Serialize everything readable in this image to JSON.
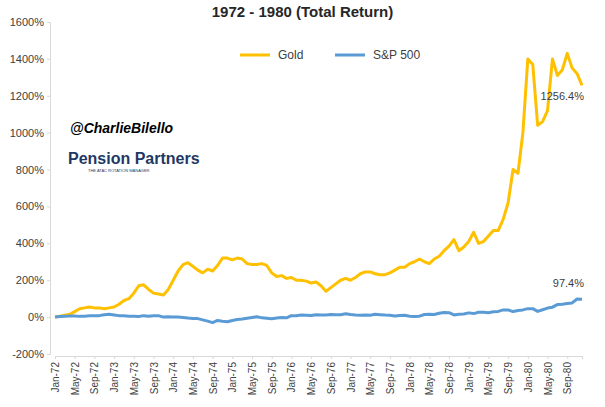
{
  "chart_data": {
    "type": "line",
    "title": "1972 - 1980 (Total Return)",
    "categories": [
      "Jan-72",
      null,
      null,
      null,
      "May-72",
      null,
      null,
      null,
      "Sep-72",
      null,
      null,
      null,
      "Jan-73",
      null,
      null,
      null,
      "May-73",
      null,
      null,
      null,
      "Sep-73",
      null,
      null,
      null,
      "Jan-74",
      null,
      null,
      null,
      "May-74",
      null,
      null,
      null,
      "Sep-74",
      null,
      null,
      null,
      "Jan-75",
      null,
      null,
      null,
      "May-75",
      null,
      null,
      null,
      "Sep-75",
      null,
      null,
      null,
      "Jan-76",
      null,
      null,
      null,
      "May-76",
      null,
      null,
      null,
      "Sep-76",
      null,
      null,
      null,
      "Jan-77",
      null,
      null,
      null,
      "May-77",
      null,
      null,
      null,
      "Sep-77",
      null,
      null,
      null,
      "Jan-78",
      null,
      null,
      null,
      "May-78",
      null,
      null,
      null,
      "Sep-78",
      null,
      null,
      null,
      "Jan-79",
      null,
      null,
      null,
      "May-79",
      null,
      null,
      null,
      "Sep-79",
      null,
      null,
      null,
      "Jan-80",
      null,
      null,
      null,
      "May-80",
      null,
      null,
      null,
      "Sep-80",
      null,
      null,
      null
    ],
    "series": [
      {
        "name": "Gold",
        "color": "#ffc000",
        "values": [
          0,
          5,
          10,
          15,
          30,
          45,
          50,
          55,
          50,
          50,
          45,
          50,
          55,
          70,
          90,
          100,
          130,
          170,
          175,
          150,
          130,
          125,
          120,
          150,
          200,
          250,
          285,
          295,
          275,
          255,
          240,
          260,
          250,
          280,
          320,
          320,
          310,
          320,
          315,
          290,
          285,
          285,
          290,
          280,
          240,
          220,
          225,
          210,
          215,
          200,
          200,
          195,
          185,
          190,
          170,
          140,
          160,
          180,
          200,
          210,
          200,
          215,
          235,
          245,
          245,
          235,
          230,
          230,
          240,
          255,
          270,
          270,
          290,
          300,
          315,
          300,
          290,
          315,
          330,
          360,
          385,
          420,
          360,
          380,
          410,
          460,
          400,
          410,
          440,
          470,
          470,
          530,
          620,
          800,
          780,
          1000,
          1400,
          1370,
          1040,
          1060,
          1120,
          1400,
          1310,
          1340,
          1430,
          1350,
          1320,
          1256.4
        ]
      },
      {
        "name": "S&P 500",
        "color": "#5b9bd5",
        "values": [
          0,
          3,
          5,
          6,
          6,
          4,
          5,
          8,
          7,
          8,
          13,
          15,
          12,
          8,
          8,
          5,
          4,
          3,
          8,
          5,
          8,
          8,
          0,
          2,
          1,
          1,
          -2,
          -5,
          -7,
          -8,
          -15,
          -22,
          -30,
          -18,
          -22,
          -25,
          -18,
          -13,
          -10,
          -6,
          -2,
          2,
          -4,
          -6,
          -9,
          -5,
          -2,
          -4,
          8,
          7,
          11,
          10,
          9,
          13,
          12,
          12,
          14,
          13,
          13,
          18,
          14,
          11,
          10,
          11,
          10,
          15,
          13,
          11,
          10,
          6,
          9,
          10,
          5,
          3,
          5,
          14,
          16,
          14,
          21,
          25,
          24,
          12,
          15,
          17,
          23,
          19,
          26,
          26,
          24,
          29,
          31,
          39,
          39,
          30,
          36,
          39,
          46,
          46,
          31,
          40,
          49,
          54,
          68,
          70,
          74,
          77,
          98,
          97.4
        ]
      }
    ],
    "ylim": [
      -200,
      1600
    ],
    "yticks": [
      {
        "value": -200,
        "label": "-200%"
      },
      {
        "value": 0,
        "label": "0%"
      },
      {
        "value": 200,
        "label": "200%"
      },
      {
        "value": 400,
        "label": "400%"
      },
      {
        "value": 600,
        "label": "600%"
      },
      {
        "value": 800,
        "label": "800%"
      },
      {
        "value": 1000,
        "label": "1000%"
      },
      {
        "value": 1200,
        "label": "1200%"
      },
      {
        "value": 1400,
        "label": "1400%"
      },
      {
        "value": 1600,
        "label": "1600%"
      }
    ],
    "legend": "top",
    "annotations": [
      "@CharlieBilello",
      "Pension Partners",
      "THE ATAC ROTATION MANAGER",
      "1256.4%",
      "97.4%"
    ]
  }
}
